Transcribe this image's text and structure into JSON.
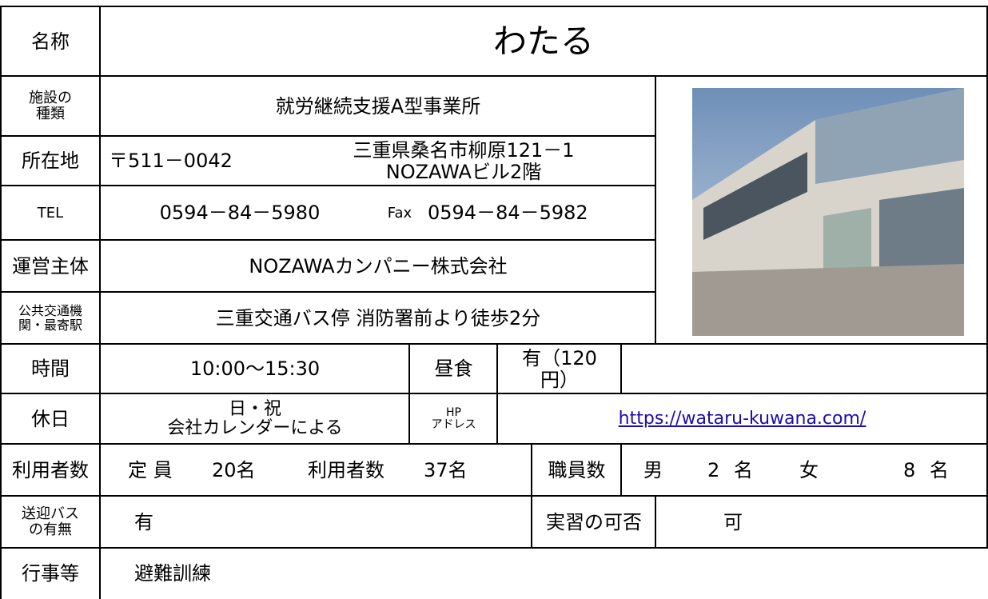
{
  "name_label": "名称",
  "name": "わたる",
  "type_label": "施設の\n種類",
  "type": "就労継続支援A型事業所",
  "address_label": "所在地",
  "postal": "〒511－0042",
  "address": "三重県桑名市柳原121－1\nNOZAWAビル2階",
  "tel_label": "TEL",
  "tel": "0594－84－5980",
  "fax_label": "Fax",
  "fax": "0594－84－5982",
  "operator_label": "運営主体",
  "operator": "NOZAWAカンパニー株式会社",
  "transport_label": "公共交通機\n関・最寄駅",
  "transport": "三重交通バス停 消防署前より徒歩2分",
  "hours_label": "時間",
  "hours": "10:00～15:30",
  "lunch_label": "昼食",
  "lunch": "有（120\n円）",
  "holiday_label": "休日",
  "holiday": "日・祝\n会社カレンダーによる",
  "hp_label": "HP\nアドレス",
  "hp": "https://wataru-kuwana.com/",
  "users_label": "利用者数",
  "capacity_label": "定 員",
  "capacity": "20名",
  "users_count_label": "利用者数",
  "users_count": "37名",
  "staff_label": "職員数",
  "male_label": "男",
  "male": "2 名",
  "female_label": "女",
  "female": "8 名",
  "bus_label": "送迎バス\nの有無",
  "bus": "有",
  "practicum_label": "実習の可否",
  "practicum": "可",
  "events_label": "行事等",
  "events": "避難訓練"
}
